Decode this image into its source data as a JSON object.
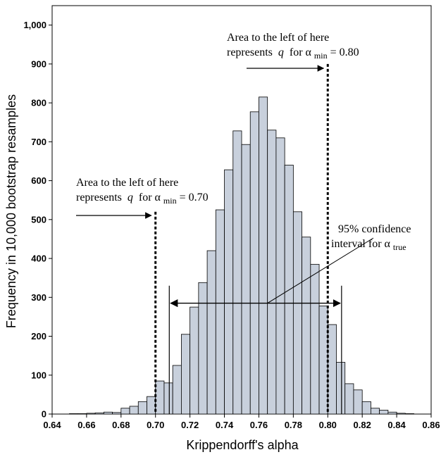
{
  "chart_data": {
    "type": "bar",
    "xlabel": "Krippendorff's alpha",
    "ylabel": "Frequency in 10,000 bootstrap resamples",
    "xlim": [
      0.64,
      0.86
    ],
    "ylim": [
      0,
      1050
    ],
    "x_ticks": [
      "0.64",
      "0.66",
      "0.68",
      "0.70",
      "0.72",
      "0.74",
      "0.76",
      "0.78",
      "0.80",
      "0.82",
      "0.84",
      "0.86"
    ],
    "y_ticks": [
      "0",
      "100",
      "200",
      "300",
      "400",
      "500",
      "600",
      "700",
      "800",
      "900",
      "1,000"
    ],
    "bin_width": 0.005,
    "bars": [
      {
        "x0": 0.65,
        "value": 1
      },
      {
        "x0": 0.655,
        "value": 1
      },
      {
        "x0": 0.66,
        "value": 2
      },
      {
        "x0": 0.665,
        "value": 3
      },
      {
        "x0": 0.67,
        "value": 5
      },
      {
        "x0": 0.675,
        "value": 4
      },
      {
        "x0": 0.68,
        "value": 15
      },
      {
        "x0": 0.685,
        "value": 20
      },
      {
        "x0": 0.69,
        "value": 32
      },
      {
        "x0": 0.695,
        "value": 45
      },
      {
        "x0": 0.7,
        "value": 85
      },
      {
        "x0": 0.705,
        "value": 80
      },
      {
        "x0": 0.71,
        "value": 125
      },
      {
        "x0": 0.715,
        "value": 205
      },
      {
        "x0": 0.72,
        "value": 275
      },
      {
        "x0": 0.725,
        "value": 338
      },
      {
        "x0": 0.73,
        "value": 420
      },
      {
        "x0": 0.735,
        "value": 525
      },
      {
        "x0": 0.74,
        "value": 628
      },
      {
        "x0": 0.745,
        "value": 728
      },
      {
        "x0": 0.75,
        "value": 693
      },
      {
        "x0": 0.755,
        "value": 777
      },
      {
        "x0": 0.76,
        "value": 815
      },
      {
        "x0": 0.765,
        "value": 730
      },
      {
        "x0": 0.77,
        "value": 710
      },
      {
        "x0": 0.775,
        "value": 640
      },
      {
        "x0": 0.78,
        "value": 520
      },
      {
        "x0": 0.785,
        "value": 455
      },
      {
        "x0": 0.79,
        "value": 385
      },
      {
        "x0": 0.795,
        "value": 278
      },
      {
        "x0": 0.8,
        "value": 230
      },
      {
        "x0": 0.805,
        "value": 133
      },
      {
        "x0": 0.81,
        "value": 78
      },
      {
        "x0": 0.815,
        "value": 62
      },
      {
        "x0": 0.82,
        "value": 32
      },
      {
        "x0": 0.825,
        "value": 15
      },
      {
        "x0": 0.83,
        "value": 10
      },
      {
        "x0": 0.835,
        "value": 5
      },
      {
        "x0": 0.84,
        "value": 2
      },
      {
        "x0": 0.845,
        "value": 1
      }
    ],
    "reference_lines": [
      {
        "x": 0.7,
        "style": "dotted",
        "y_top": 520
      },
      {
        "x": 0.8,
        "style": "dotted",
        "y_top": 900
      }
    ],
    "confidence_interval": {
      "lower": 0.708,
      "upper": 0.808,
      "y": 285
    },
    "annotations": {
      "left_line_1": "Area to the left of here",
      "left_line_2_pre": "represents",
      "left_q": "q",
      "left_for": "for α",
      "left_sub": "min",
      "left_value": "= 0.70",
      "right_line_1": "Area to the left of here",
      "right_line_2_pre": "represents",
      "right_q": "q",
      "right_for": "for α",
      "right_sub": "min",
      "right_value": "= 0.80",
      "ci_line_1": "95% confidence",
      "ci_line_2": "interval for α",
      "ci_sub": "true"
    },
    "colors": {
      "bar_fill": "#c8d0dc",
      "bar_stroke": "#000000"
    }
  }
}
